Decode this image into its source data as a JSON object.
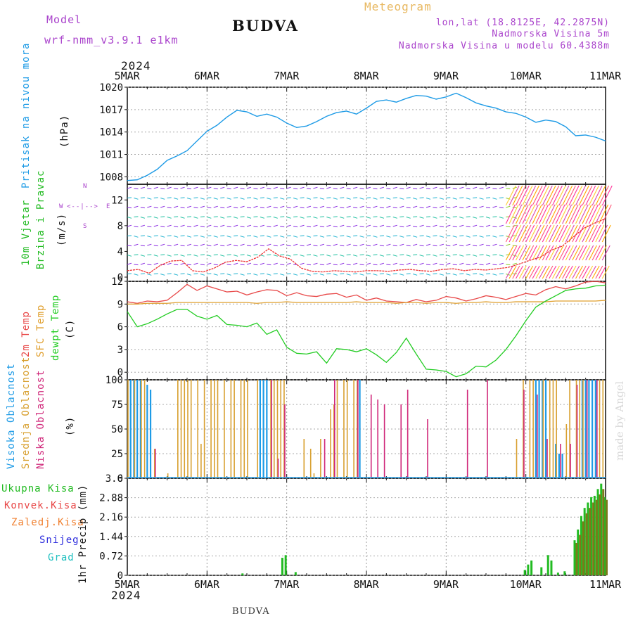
{
  "header": {
    "model_label": "Model",
    "model_name": "wrf-nmm_v3.9.1  e1km",
    "station": "BUDVA",
    "meteogram": "Meteogram",
    "lonlat": "lon,lat (18.8125E, 42.2875N)",
    "elevation": "Nadmorska Visina 5m",
    "model_elevation": "Nadmorska Visina u modelu 60.4388m"
  },
  "footer": {
    "station": "BUDVA",
    "watermark": "made by Angel"
  },
  "time_axis": {
    "year": "2024",
    "labels": [
      "5MAR",
      "6MAR",
      "7MAR",
      "8MAR",
      "9MAR",
      "10MAR",
      "11MAR"
    ]
  },
  "colors": {
    "pressure": "#1e9be6",
    "temp2m": "#e84848",
    "sfc": "#e0a030",
    "dew": "#22cc22",
    "high": "#1e9be6",
    "mid": "#d8a030",
    "low": "#d0287a",
    "precip_total": "#22bb22",
    "precip_conv": "#e84848",
    "precip_frozen": "#f08030",
    "snow": "#3030dd",
    "grad": "#20c0c0",
    "model_label": "#aa44cc",
    "meteogram": "#e8b860"
  },
  "panels": {
    "pressure": {
      "ylabels": [
        "Pritisak na nivou mora",
        "(hPa)"
      ]
    },
    "wind": {
      "ylabels": [
        "10m Vjetar",
        "Brzina i Pravac",
        "(m/s)"
      ],
      "compass": [
        "N",
        "W",
        "E",
        "S"
      ],
      "compass_mark": "<--|-->"
    },
    "temp": {
      "ylabels": [
        "2m Temp",
        "SFC Temp",
        "dewpt Temp",
        "(C)"
      ]
    },
    "cloud": {
      "ylabels": [
        "Visoka Oblacnost",
        "Srednja Oblacnost",
        "Niska Oblacnost",
        "(%)"
      ]
    },
    "precip": {
      "legend": [
        "Ukupna  Kisa",
        "Konvek.Kisa",
        "Zaledj.Kisa",
        "Snijeg",
        "Grad"
      ],
      "ylabel": "1hr Precip (mm)"
    }
  },
  "chart_data": [
    {
      "type": "line",
      "name": "pressure",
      "ylim": [
        1007,
        1020
      ],
      "yticks": [
        1008,
        1011,
        1014,
        1017,
        1020
      ],
      "x": [
        0,
        3,
        6,
        9,
        12,
        15,
        18,
        21,
        24,
        27,
        30,
        33,
        36,
        39,
        42,
        45,
        48,
        51,
        54,
        57,
        60,
        63,
        66,
        69,
        72,
        75,
        78,
        81,
        84,
        87,
        90,
        93,
        96,
        99,
        102,
        105,
        108,
        111,
        114,
        117,
        120,
        123,
        126,
        129,
        132,
        135,
        138,
        141,
        144
      ],
      "values": [
        1007.5,
        1007.6,
        1008.2,
        1009.0,
        1010.2,
        1010.8,
        1011.5,
        1012.8,
        1014.1,
        1014.9,
        1016.0,
        1016.9,
        1016.7,
        1016.1,
        1016.4,
        1016.0,
        1015.2,
        1014.6,
        1014.8,
        1015.4,
        1016.1,
        1016.6,
        1016.8,
        1016.4,
        1017.2,
        1018.1,
        1018.3,
        1018.0,
        1018.5,
        1018.9,
        1018.8,
        1018.4,
        1018.7,
        1019.2,
        1018.6,
        1017.9,
        1017.5,
        1017.2,
        1016.7,
        1016.5,
        1016.0,
        1015.3,
        1015.6,
        1015.4,
        1014.7,
        1013.5,
        1013.6,
        1013.3,
        1012.8
      ]
    },
    {
      "type": "line",
      "name": "temperature",
      "ylim": [
        -1,
        12
      ],
      "yticks": [
        0,
        3,
        6,
        9,
        12
      ],
      "x": [
        0,
        3,
        6,
        9,
        12,
        15,
        18,
        21,
        24,
        27,
        30,
        33,
        36,
        39,
        42,
        45,
        48,
        51,
        54,
        57,
        60,
        63,
        66,
        69,
        72,
        75,
        78,
        81,
        84,
        87,
        90,
        93,
        96,
        99,
        102,
        105,
        108,
        111,
        114,
        117,
        120,
        123,
        126,
        129,
        132,
        135,
        138,
        141,
        144
      ],
      "series": [
        {
          "name": "2m Temp",
          "values": [
            9.3,
            9.1,
            9.4,
            9.3,
            9.5,
            10.5,
            11.6,
            10.8,
            11.4,
            11.0,
            10.6,
            10.7,
            10.2,
            10.6,
            10.9,
            10.8,
            10.1,
            10.5,
            10.1,
            10.0,
            10.3,
            10.4,
            9.9,
            10.2,
            9.5,
            9.8,
            9.4,
            9.3,
            9.2,
            9.6,
            9.3,
            9.5,
            10.0,
            9.8,
            9.4,
            9.7,
            10.1,
            9.9,
            9.6,
            10.0,
            10.4,
            10.2,
            10.9,
            11.3,
            11.0,
            11.4,
            11.9,
            12.0,
            11.8
          ]
        },
        {
          "name": "SFC Temp",
          "values": [
            9.0,
            9.0,
            9.1,
            9.1,
            9.1,
            9.2,
            9.2,
            9.2,
            9.2,
            9.2,
            9.2,
            9.2,
            9.2,
            9.1,
            9.2,
            9.2,
            9.3,
            9.2,
            9.2,
            9.2,
            9.2,
            9.2,
            9.2,
            9.3,
            9.2,
            9.2,
            9.2,
            9.1,
            9.2,
            9.2,
            9.1,
            9.2,
            9.2,
            9.1,
            9.2,
            9.2,
            9.3,
            9.2,
            9.2,
            9.3,
            9.3,
            9.3,
            9.3,
            9.4,
            9.4,
            9.4,
            9.4,
            9.4,
            9.5
          ]
        },
        {
          "name": "dewpt Temp",
          "values": [
            8.0,
            6.0,
            6.4,
            7.0,
            7.7,
            8.3,
            8.3,
            7.4,
            7.0,
            7.5,
            6.3,
            6.2,
            6.0,
            6.5,
            5.0,
            5.6,
            3.3,
            2.5,
            2.4,
            2.7,
            1.2,
            3.1,
            3.0,
            2.7,
            3.1,
            2.3,
            1.3,
            2.6,
            4.5,
            2.4,
            0.4,
            0.3,
            0.1,
            -0.6,
            -0.2,
            0.8,
            0.7,
            1.6,
            3.0,
            4.8,
            6.8,
            8.6,
            9.4,
            10.1,
            10.8,
            11.0,
            11.1,
            11.4,
            11.5
          ]
        }
      ]
    },
    {
      "type": "bar",
      "name": "cloud",
      "ylim": [
        0,
        100
      ],
      "yticks": [
        0,
        25,
        50,
        75,
        100
      ],
      "series": [
        {
          "name": "Visoka Oblacnost",
          "x": [
            1,
            2,
            3,
            4,
            6,
            7,
            40,
            41,
            42,
            70,
            123,
            124,
            125,
            126,
            129,
            130,
            131,
            137,
            138,
            139,
            140,
            141
          ],
          "values": [
            100,
            100,
            100,
            100,
            95,
            90,
            100,
            100,
            100,
            100,
            100,
            100,
            100,
            100,
            35,
            25,
            25,
            100,
            100,
            100,
            100,
            100
          ]
        },
        {
          "name": "Srednja Oblacnost",
          "x": [
            0,
            2,
            4,
            5,
            8,
            12,
            15,
            16,
            17,
            18,
            19,
            21,
            22,
            23,
            25,
            26,
            27,
            29,
            31,
            32,
            34,
            35,
            36,
            39,
            43,
            44,
            45,
            46,
            47,
            53,
            55,
            56,
            58,
            61,
            62,
            63,
            65,
            66,
            68,
            69,
            117,
            119,
            121,
            122,
            125,
            127,
            128,
            129,
            132,
            133,
            135,
            136,
            137,
            142,
            143
          ],
          "values": [
            100,
            100,
            100,
            100,
            30,
            5,
            100,
            100,
            100,
            100,
            100,
            100,
            35,
            100,
            100,
            100,
            100,
            100,
            100,
            100,
            100,
            100,
            100,
            100,
            100,
            100,
            100,
            100,
            100,
            40,
            30,
            5,
            40,
            70,
            75,
            100,
            100,
            100,
            100,
            100,
            40,
            100,
            100,
            100,
            100,
            100,
            100,
            100,
            55,
            100,
            100,
            100,
            100,
            100,
            100
          ]
        },
        {
          "name": "Niska Oblacnost",
          "x": [
            8,
            43,
            45,
            47,
            59,
            62,
            69,
            73,
            75,
            77,
            82,
            84,
            90,
            102,
            108,
            119,
            123,
            126,
            130,
            133,
            135,
            138,
            141
          ],
          "values": [
            30,
            100,
            20,
            75,
            40,
            100,
            100,
            85,
            80,
            75,
            75,
            90,
            60,
            90,
            100,
            90,
            85,
            40,
            35,
            35,
            95,
            100,
            100
          ]
        }
      ]
    },
    {
      "type": "bar",
      "name": "precipitation",
      "ylim": [
        0,
        3.6
      ],
      "yticks": [
        0,
        0.72,
        1.44,
        2.16,
        2.88,
        3.6
      ],
      "series": [
        {
          "name": "Ukupna  Kisa",
          "x": [
            35,
            47,
            48,
            51,
            120,
            121,
            122,
            125,
            127,
            128,
            130,
            132,
            135,
            136,
            137,
            138,
            139,
            140,
            141,
            142,
            143,
            144
          ],
          "values": [
            0.07,
            0.65,
            0.75,
            0.12,
            0.2,
            0.4,
            0.55,
            0.3,
            0.75,
            0.55,
            0.1,
            0.15,
            1.3,
            1.7,
            2.2,
            2.5,
            2.7,
            2.9,
            2.95,
            3.2,
            3.4,
            2.9
          ]
        },
        {
          "name": "Konvek.Kisa",
          "x": [
            135,
            136,
            137,
            138,
            139,
            140,
            141,
            142,
            143,
            144
          ],
          "values": [
            1.2,
            1.5,
            2.0,
            2.3,
            2.5,
            2.7,
            2.8,
            3.0,
            3.2,
            2.8
          ]
        }
      ]
    }
  ]
}
